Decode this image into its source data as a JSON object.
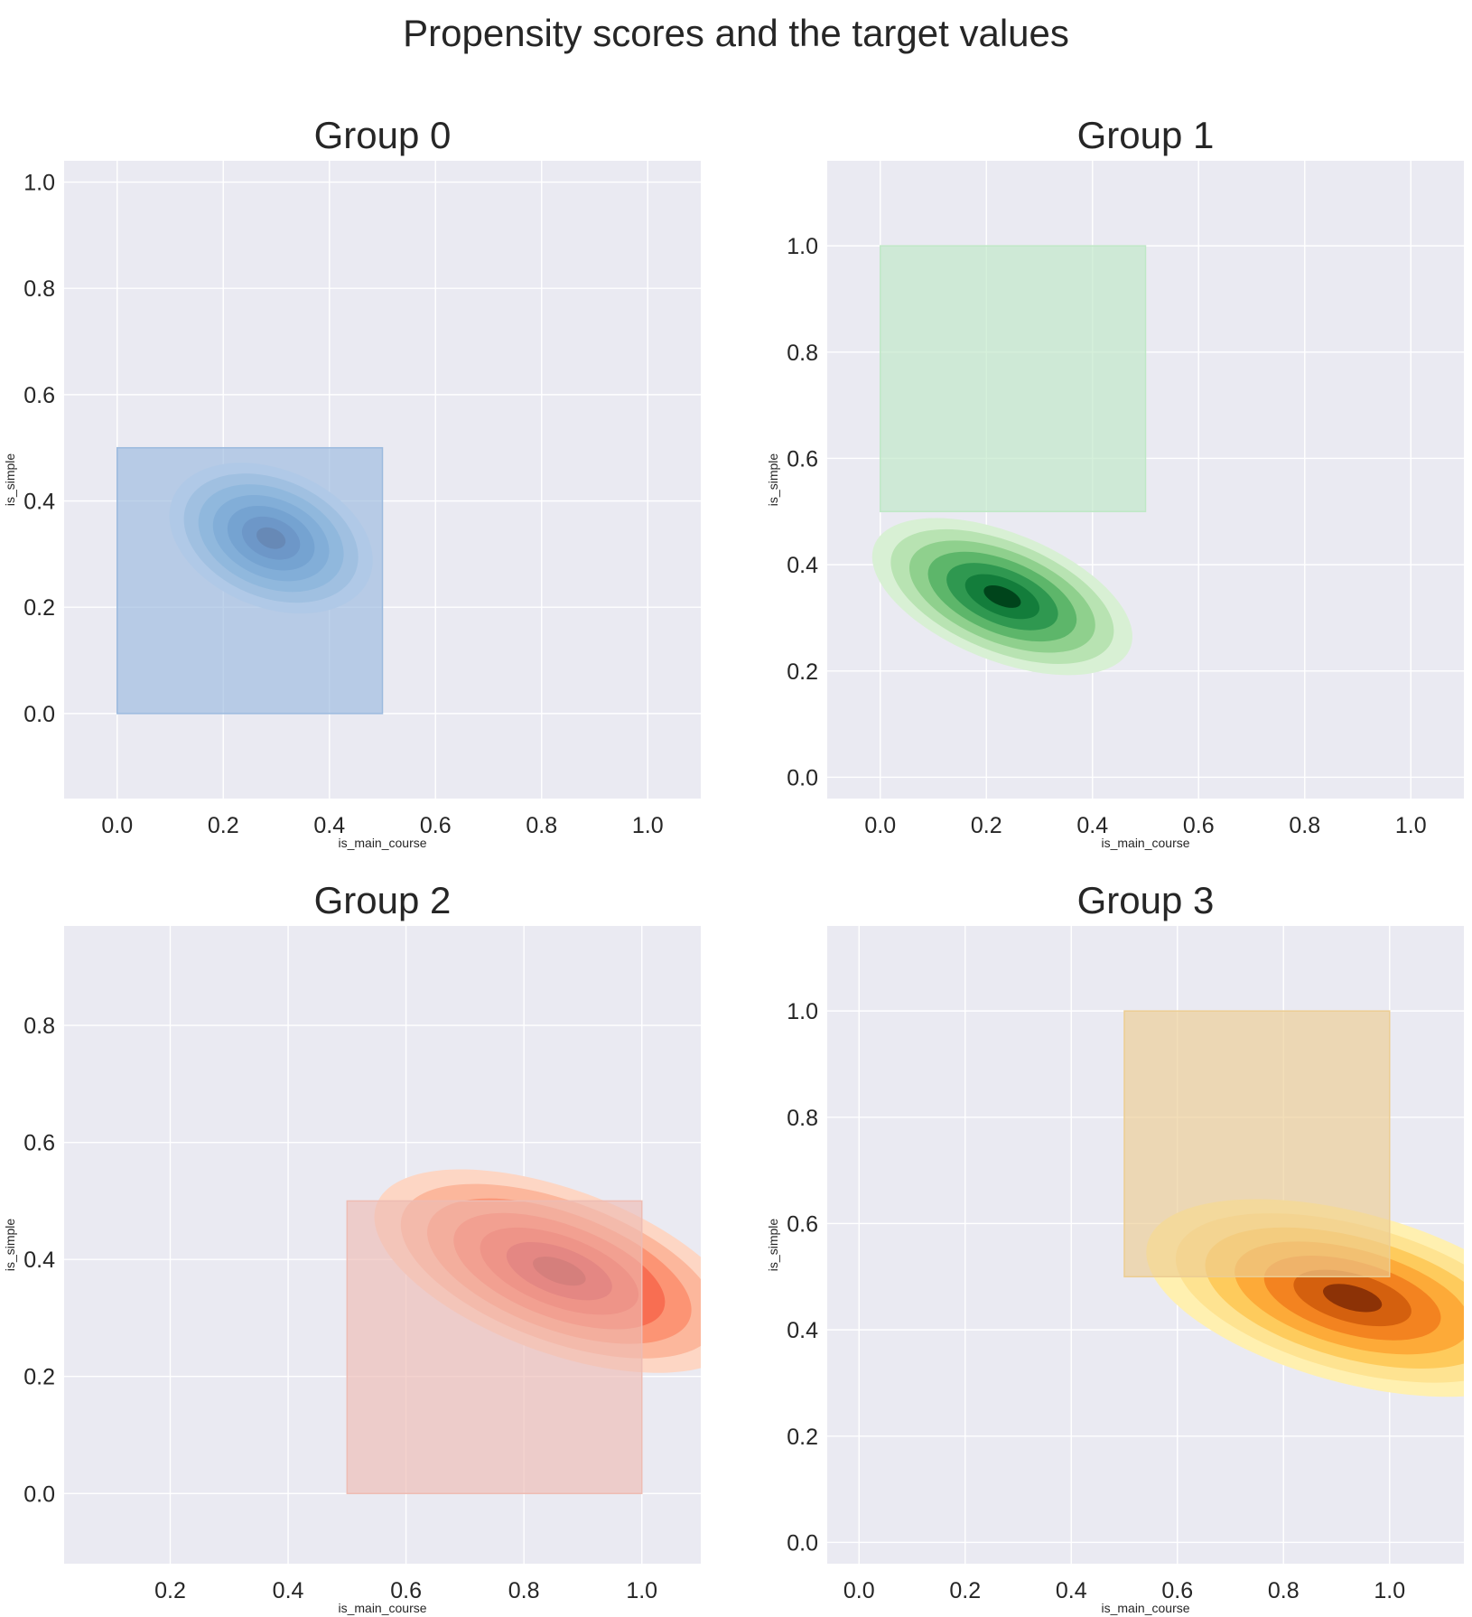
{
  "title": "Propensity scores and the target values",
  "chart_data": [
    {
      "type": "area",
      "title": "Group 0",
      "xlabel": "is_main_course",
      "ylabel": "is_simple",
      "xlim": [
        -0.1,
        1.1
      ],
      "ylim": [
        -0.16,
        1.04
      ],
      "xticks": [
        "0.0",
        "0.2",
        "0.4",
        "0.6",
        "0.8",
        "1.0"
      ],
      "xtick_values": [
        0.0,
        0.2,
        0.4,
        0.6,
        0.8,
        1.0
      ],
      "yticks": [
        "0.0",
        "0.2",
        "0.4",
        "0.6",
        "0.8",
        "1.0"
      ],
      "ytick_values": [
        0.0,
        0.2,
        0.4,
        0.6,
        0.8,
        1.0
      ],
      "grid": true,
      "target_region": {
        "x": [
          0.0,
          0.5
        ],
        "y": [
          0.0,
          0.5
        ]
      },
      "density_peak": {
        "x": 0.29,
        "y": 0.33
      },
      "colormap": "Blues",
      "colors": {
        "region": "#9bbade",
        "shades": [
          "#d7e6f5",
          "#a9cce5",
          "#7db6db",
          "#5597cb",
          "#2f78b8",
          "#17569e",
          "#08306b"
        ]
      }
    },
    {
      "type": "area",
      "title": "Group 1",
      "xlabel": "is_main_course",
      "ylabel": "is_simple",
      "xlim": [
        -0.1,
        1.1
      ],
      "ylim": [
        -0.04,
        1.16
      ],
      "xticks": [
        "0.0",
        "0.2",
        "0.4",
        "0.6",
        "0.8",
        "1.0"
      ],
      "xtick_values": [
        0.0,
        0.2,
        0.4,
        0.6,
        0.8,
        1.0
      ],
      "yticks": [
        "0.0",
        "0.2",
        "0.4",
        "0.6",
        "0.8",
        "1.0"
      ],
      "ytick_values": [
        0.0,
        0.2,
        0.4,
        0.6,
        0.8,
        1.0
      ],
      "grid": true,
      "target_region": {
        "x": [
          0.0,
          0.5
        ],
        "y": [
          0.5,
          1.0
        ]
      },
      "density_peak": {
        "x": 0.23,
        "y": 0.34
      },
      "colormap": "Greens",
      "colors": {
        "region": "#bfe8c6",
        "shades": [
          "#d8f0d4",
          "#b8e3b2",
          "#8fd08d",
          "#5db66a",
          "#2f9850",
          "#137d3b",
          "#00441b"
        ]
      }
    },
    {
      "type": "area",
      "title": "Group 2",
      "xlabel": "is_main_course",
      "ylabel": "is_simple",
      "xlim": [
        0.02,
        1.1
      ],
      "ylim": [
        -0.12,
        0.97
      ],
      "xticks": [
        "0.2",
        "0.4",
        "0.6",
        "0.8",
        "1.0"
      ],
      "xtick_values": [
        0.2,
        0.4,
        0.6,
        0.8,
        1.0
      ],
      "yticks": [
        "0.0",
        "0.2",
        "0.4",
        "0.6",
        "0.8"
      ],
      "ytick_values": [
        0.0,
        0.2,
        0.4,
        0.6,
        0.8
      ],
      "grid": true,
      "target_region": {
        "x": [
          0.5,
          1.0
        ],
        "y": [
          0.0,
          0.5
        ]
      },
      "density_peak": {
        "x": 0.86,
        "y": 0.38
      },
      "colormap": "Reds",
      "colors": {
        "region": "#eebcb3",
        "shades": [
          "#fdd6c4",
          "#fcb79c",
          "#fc9474",
          "#f86e52",
          "#ee4a38",
          "#d0262a",
          "#a50f15"
        ]
      }
    },
    {
      "type": "area",
      "title": "Group 3",
      "xlabel": "is_main_course",
      "ylabel": "is_simple",
      "xlim": [
        -0.06,
        1.14
      ],
      "ylim": [
        -0.04,
        1.16
      ],
      "xticks": [
        "0.0",
        "0.2",
        "0.4",
        "0.6",
        "0.8",
        "1.0"
      ],
      "xtick_values": [
        0.0,
        0.2,
        0.4,
        0.6,
        0.8,
        1.0
      ],
      "yticks": [
        "0.0",
        "0.2",
        "0.4",
        "0.6",
        "0.8",
        "1.0"
      ],
      "ytick_values": [
        0.0,
        0.2,
        0.4,
        0.6,
        0.8,
        1.0
      ],
      "grid": true,
      "target_region": {
        "x": [
          0.5,
          1.0
        ],
        "y": [
          0.5,
          1.0
        ]
      },
      "density_peak": {
        "x": 0.93,
        "y": 0.46
      },
      "colormap": "YlOrBr",
      "colors": {
        "region": "#eccd92",
        "shades": [
          "#fff0b0",
          "#fee391",
          "#fecb5c",
          "#fdaa38",
          "#f38320",
          "#d4600e",
          "#8c3206"
        ]
      }
    }
  ]
}
